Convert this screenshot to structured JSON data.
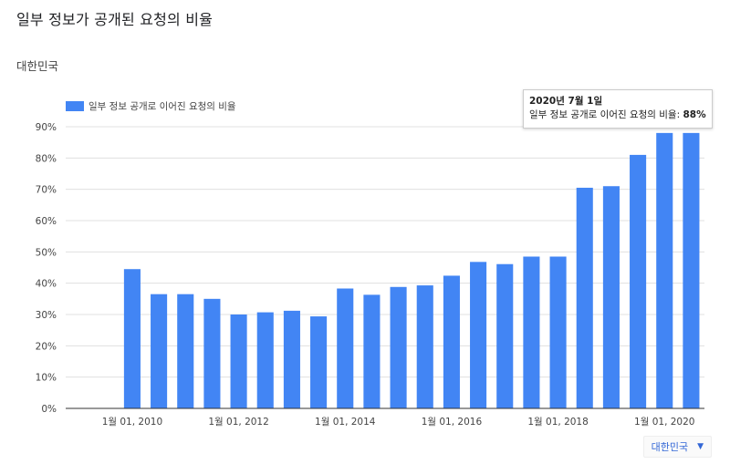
{
  "page": {
    "title": "일부 정보가 공개된 요청의 비율",
    "region_label": "대한민국"
  },
  "region_select": {
    "value": "대한민국",
    "icon": "caret-down-icon"
  },
  "tooltip": {
    "title": "2020년 7월 1일",
    "series_label": "일부 정보 공개로 이어진 요청의 비율: ",
    "value_text": "88%"
  },
  "colors": {
    "bar": "#4285f4",
    "grid": "#e0e0e0",
    "axis": "#333333",
    "text": "#444444"
  },
  "chart_data": {
    "type": "bar",
    "title": "",
    "xlabel": "",
    "ylabel": "",
    "legend": {
      "position": "top-left",
      "entries": [
        "일부 정보 공개로 이어진 요청의 비율"
      ]
    },
    "grid": true,
    "ylim": [
      0,
      90
    ],
    "y_ticks": [
      "0%",
      "10%",
      "20%",
      "30%",
      "40%",
      "50%",
      "60%",
      "70%",
      "80%",
      "90%"
    ],
    "x_ticks": [
      "1월 01, 2010",
      "1월 01, 2012",
      "1월 01, 2014",
      "1월 01, 2016",
      "1월 01, 2018",
      "1월 01, 2020"
    ],
    "series": [
      {
        "name": "일부 정보 공개로 이어진 요청의 비율",
        "values": [
          null,
          null,
          44.5,
          36.5,
          36.5,
          35,
          30,
          30.7,
          31.2,
          29.4,
          38.3,
          36.3,
          38.8,
          39.3,
          42.4,
          46.8,
          46.1,
          48.5,
          48.5,
          70.5,
          71,
          81,
          88
        ]
      }
    ],
    "categories": [
      "2009-01",
      "2009-07",
      "2010-01",
      "2010-07",
      "2011-01",
      "2011-07",
      "2012-01",
      "2012-07",
      "2013-01",
      "2013-07",
      "2014-01",
      "2014-07",
      "2015-01",
      "2015-07",
      "2016-01",
      "2016-07",
      "2017-01",
      "2017-07",
      "2018-01",
      "2018-07",
      "2019-01",
      "2019-07",
      "2020-01"
    ],
    "highlighted": {
      "category": "2020-07",
      "value": 88
    }
  }
}
